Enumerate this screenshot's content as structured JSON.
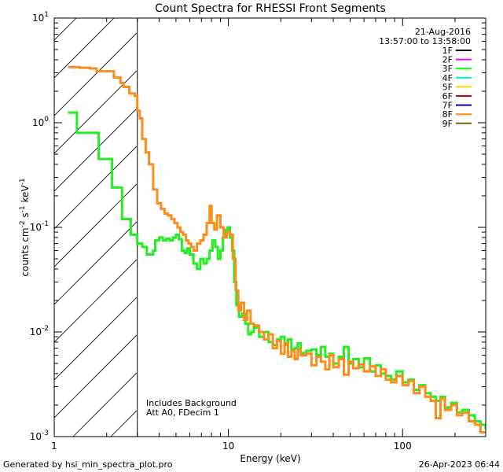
{
  "chart_data": {
    "type": "line",
    "title": "Count Spectra for RHESSI Front Segments",
    "xlabel": "Energy (keV)",
    "ylabel_parts": [
      "counts cm",
      "-2",
      " s",
      "-1",
      " keV",
      "-1"
    ],
    "xscale": "log",
    "yscale": "log",
    "xlim": [
      1,
      300
    ],
    "ylim": [
      0.001,
      10
    ],
    "x_tick_labels": [
      {
        "value": 1,
        "text": "1"
      },
      {
        "value": 10,
        "text": "10"
      },
      {
        "value": 100,
        "text": "100"
      }
    ],
    "y_tick_labels": [
      {
        "value": 0.001,
        "base": "10",
        "exp": "-3"
      },
      {
        "value": 0.01,
        "base": "10",
        "exp": "-2"
      },
      {
        "value": 0.1,
        "base": "10",
        "exp": "-1"
      },
      {
        "value": 1,
        "base": "10",
        "exp": "0"
      },
      {
        "value": 10,
        "base": "10",
        "exp": "1"
      }
    ],
    "date": "21-Aug-2016",
    "time_range": "13:57:00 to 13:58:00",
    "legend": [
      {
        "name": "1F",
        "color": "#000000"
      },
      {
        "name": "2F",
        "color": "#ff00ff"
      },
      {
        "name": "3F",
        "color": "#00ff00"
      },
      {
        "name": "4F",
        "color": "#00e5ee"
      },
      {
        "name": "5F",
        "color": "#ffd700"
      },
      {
        "name": "6F",
        "color": "#cc0000"
      },
      {
        "name": "7F",
        "color": "#0000cc"
      },
      {
        "name": "8F",
        "color": "#ff8c00"
      },
      {
        "name": "9F",
        "color": "#6b6b00"
      }
    ],
    "hatch_region": {
      "x_min": 1,
      "x_max": 3
    },
    "annotations": [
      "Includes Background",
      "Att A0, FDecim 1"
    ],
    "series": [
      {
        "name": "3F",
        "color": "#22ee22",
        "points": [
          [
            1.2,
            1.25
          ],
          [
            1.35,
            0.8
          ],
          [
            1.6,
            0.8
          ],
          [
            1.8,
            0.45
          ],
          [
            2.0,
            0.45
          ],
          [
            2.15,
            0.24
          ],
          [
            2.35,
            0.24
          ],
          [
            2.45,
            0.12
          ],
          [
            2.7,
            0.12
          ],
          [
            2.75,
            0.085
          ],
          [
            2.9,
            0.085
          ],
          [
            3.0,
            0.07
          ],
          [
            3.2,
            0.065
          ],
          [
            3.4,
            0.055
          ],
          [
            3.6,
            0.055
          ],
          [
            3.7,
            0.06
          ],
          [
            3.8,
            0.075
          ],
          [
            4.0,
            0.08
          ],
          [
            4.2,
            0.075
          ],
          [
            4.4,
            0.078
          ],
          [
            4.6,
            0.075
          ],
          [
            4.8,
            0.08
          ],
          [
            5.0,
            0.085
          ],
          [
            5.2,
            0.077
          ],
          [
            5.4,
            0.06
          ],
          [
            5.6,
            0.057
          ],
          [
            5.8,
            0.063
          ],
          [
            6.0,
            0.055
          ],
          [
            6.3,
            0.045
          ],
          [
            6.6,
            0.04
          ],
          [
            6.9,
            0.05
          ],
          [
            7.2,
            0.045
          ],
          [
            7.5,
            0.05
          ],
          [
            7.8,
            0.06
          ],
          [
            8.1,
            0.075
          ],
          [
            8.4,
            0.065
          ],
          [
            8.7,
            0.05
          ],
          [
            9.0,
            0.06
          ],
          [
            9.3,
            0.08
          ],
          [
            9.6,
            0.095
          ],
          [
            9.9,
            0.1
          ],
          [
            10.2,
            0.08
          ],
          [
            10.5,
            0.06
          ],
          [
            10.8,
            0.03
          ],
          [
            11.1,
            0.018
          ],
          [
            11.5,
            0.014
          ],
          [
            12.0,
            0.015
          ],
          [
            12.5,
            0.012
          ],
          [
            13.0,
            0.0095
          ],
          [
            13.5,
            0.01
          ],
          [
            14.0,
            0.011
          ],
          [
            15,
            0.009
          ],
          [
            16,
            0.01
          ],
          [
            17,
            0.008
          ],
          [
            18,
            0.0075
          ],
          [
            19,
            0.0085
          ],
          [
            20,
            0.009
          ],
          [
            21,
            0.0075
          ],
          [
            22,
            0.0085
          ],
          [
            23,
            0.0068
          ],
          [
            24,
            0.007
          ],
          [
            25,
            0.0078
          ],
          [
            26,
            0.0063
          ],
          [
            28,
            0.0066
          ],
          [
            30,
            0.0068
          ],
          [
            32,
            0.006
          ],
          [
            34,
            0.0072
          ],
          [
            36,
            0.0058
          ],
          [
            38,
            0.0062
          ],
          [
            40,
            0.005
          ],
          [
            43,
            0.0058
          ],
          [
            46,
            0.0072
          ],
          [
            49,
            0.005
          ],
          [
            52,
            0.0055
          ],
          [
            56,
            0.0046
          ],
          [
            60,
            0.0056
          ],
          [
            65,
            0.0042
          ],
          [
            70,
            0.0048
          ],
          [
            75,
            0.004
          ],
          [
            80,
            0.0038
          ],
          [
            86,
            0.0035
          ],
          [
            92,
            0.0042
          ],
          [
            100,
            0.0033
          ],
          [
            108,
            0.0035
          ],
          [
            116,
            0.0028
          ],
          [
            125,
            0.0031
          ],
          [
            135,
            0.0026
          ],
          [
            145,
            0.0024
          ],
          [
            155,
            0.0022
          ],
          [
            165,
            0.0024
          ],
          [
            175,
            0.0019
          ],
          [
            190,
            0.0021
          ],
          [
            205,
            0.0017
          ],
          [
            220,
            0.0018
          ],
          [
            240,
            0.0016
          ],
          [
            260,
            0.0014
          ],
          [
            280,
            0.0013
          ],
          [
            300,
            0.0012
          ]
        ]
      },
      {
        "name": "8F",
        "color": "#ff8c1a",
        "points": [
          [
            1.2,
            3.4
          ],
          [
            1.4,
            3.35
          ],
          [
            1.6,
            3.3
          ],
          [
            1.75,
            3.1
          ],
          [
            2.0,
            3.1
          ],
          [
            2.2,
            2.7
          ],
          [
            2.4,
            2.4
          ],
          [
            2.5,
            2.2
          ],
          [
            2.7,
            1.9
          ],
          [
            2.9,
            1.8
          ],
          [
            3.0,
            1.3
          ],
          [
            3.1,
            1.1
          ],
          [
            3.2,
            0.7
          ],
          [
            3.35,
            0.52
          ],
          [
            3.5,
            0.4
          ],
          [
            3.7,
            0.23
          ],
          [
            3.9,
            0.17
          ],
          [
            4.1,
            0.15
          ],
          [
            4.3,
            0.135
          ],
          [
            4.5,
            0.13
          ],
          [
            4.7,
            0.12
          ],
          [
            4.9,
            0.11
          ],
          [
            5.1,
            0.1
          ],
          [
            5.3,
            0.09
          ],
          [
            5.5,
            0.085
          ],
          [
            5.7,
            0.075
          ],
          [
            5.9,
            0.07
          ],
          [
            6.1,
            0.065
          ],
          [
            6.3,
            0.06
          ],
          [
            6.6,
            0.07
          ],
          [
            6.9,
            0.075
          ],
          [
            7.2,
            0.085
          ],
          [
            7.5,
            0.11
          ],
          [
            7.8,
            0.16
          ],
          [
            8.0,
            0.11
          ],
          [
            8.3,
            0.095
          ],
          [
            8.6,
            0.13
          ],
          [
            9.0,
            0.1
          ],
          [
            9.4,
            0.08
          ],
          [
            9.8,
            0.09
          ],
          [
            10.2,
            0.085
          ],
          [
            10.6,
            0.05
          ],
          [
            11.0,
            0.025
          ],
          [
            11.4,
            0.016
          ],
          [
            11.8,
            0.019
          ],
          [
            12.3,
            0.013
          ],
          [
            12.8,
            0.016
          ],
          [
            13.4,
            0.012
          ],
          [
            14,
            0.0115
          ],
          [
            15,
            0.01
          ],
          [
            16,
            0.0085
          ],
          [
            17,
            0.0095
          ],
          [
            18,
            0.007
          ],
          [
            19,
            0.0082
          ],
          [
            20,
            0.0062
          ],
          [
            21,
            0.0078
          ],
          [
            22,
            0.0058
          ],
          [
            23,
            0.0066
          ],
          [
            24,
            0.0055
          ],
          [
            25,
            0.0068
          ],
          [
            26,
            0.006
          ],
          [
            28,
            0.0062
          ],
          [
            30,
            0.0048
          ],
          [
            32,
            0.0058
          ],
          [
            34,
            0.0052
          ],
          [
            36,
            0.0044
          ],
          [
            38,
            0.006
          ],
          [
            40,
            0.0046
          ],
          [
            43,
            0.0055
          ],
          [
            46,
            0.0039
          ],
          [
            49,
            0.0052
          ],
          [
            52,
            0.0045
          ],
          [
            56,
            0.0049
          ],
          [
            60,
            0.0042
          ],
          [
            65,
            0.0047
          ],
          [
            70,
            0.0038
          ],
          [
            75,
            0.0044
          ],
          [
            80,
            0.0035
          ],
          [
            86,
            0.0033
          ],
          [
            92,
            0.0038
          ],
          [
            100,
            0.0031
          ],
          [
            108,
            0.0034
          ],
          [
            116,
            0.0026
          ],
          [
            125,
            0.003
          ],
          [
            135,
            0.0024
          ],
          [
            145,
            0.0022
          ],
          [
            155,
            0.0015
          ],
          [
            165,
            0.0023
          ],
          [
            175,
            0.0018
          ],
          [
            190,
            0.002
          ],
          [
            205,
            0.0016
          ],
          [
            220,
            0.0017
          ],
          [
            240,
            0.0014
          ],
          [
            260,
            0.0013
          ],
          [
            280,
            0.0011
          ],
          [
            300,
            0.0011
          ]
        ]
      }
    ]
  },
  "footer": {
    "left": "Generated by hsi_min_spectra_plot.pro",
    "right": "26-Apr-2023 06:44"
  }
}
